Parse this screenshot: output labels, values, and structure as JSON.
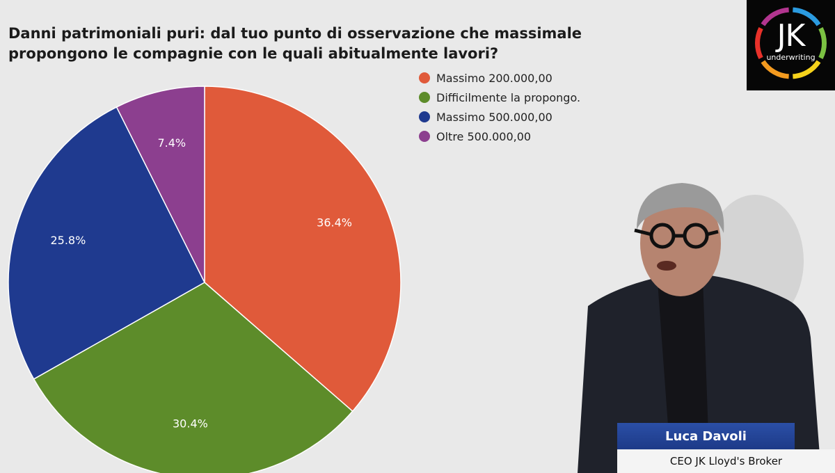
{
  "chart_data": {
    "type": "pie",
    "title": "Danni patrimoniali puri: dal tuo punto di osservazione che massimale propongono le compagnie con le quali abitualmente lavori?",
    "title_lines": [
      "Danni patrimoniali puri: dal tuo punto di osservazione che massimale",
      "propongono le compagnie con le quali abitualmente lavori?"
    ],
    "categories": [
      "Massimo 200.000,00",
      "Difficilmente la propongo.",
      "Massimo 500.000,00",
      "Oltre 500.000,00"
    ],
    "values": [
      36.4,
      30.4,
      25.8,
      7.4
    ],
    "labels": [
      "36.4%",
      "30.4%",
      "25.8%",
      "7.4%"
    ],
    "colors": [
      "#e05a3a",
      "#5d8c2a",
      "#1f3a8f",
      "#8c3f8f"
    ],
    "legend_position": "top-right"
  },
  "logo": {
    "text": "JK",
    "subtext": "underwriting",
    "ring_colors": [
      "#2b9be0",
      "#7bc142",
      "#f5d21b",
      "#f39a1f",
      "#e8312a",
      "#b2358f"
    ]
  },
  "presenter": {
    "name": "Luca Davoli",
    "role": "CEO JK Lloyd's Broker"
  }
}
